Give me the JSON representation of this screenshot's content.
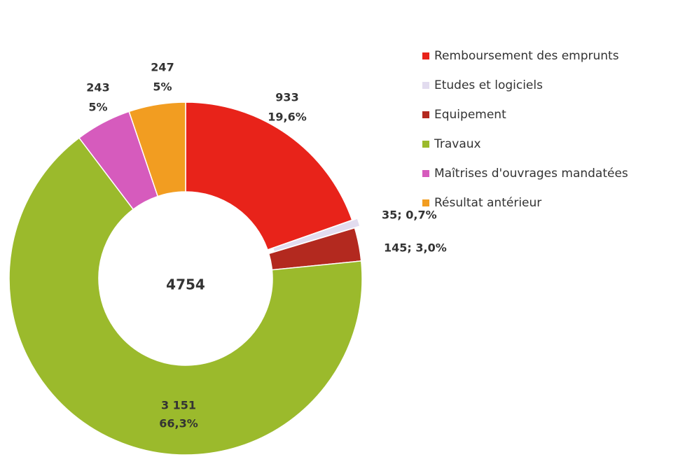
{
  "chart_data": {
    "type": "donut",
    "categories": [
      "Remboursement des emprunts",
      "Etudes et logiciels",
      "Equipement",
      "Travaux",
      "Maîtrises d'ouvrages mandatées",
      "Résultat antérieur"
    ],
    "values": [
      933,
      35,
      145,
      3151,
      243,
      247
    ],
    "value_labels": [
      [
        "933",
        "19,6%"
      ],
      [
        "35; 0,7%"
      ],
      [
        "145; 3,0%"
      ],
      [
        "3 151",
        "66,3%"
      ],
      [
        "243",
        "5%"
      ],
      [
        "247",
        "5%"
      ]
    ],
    "colors": [
      "#e8231a",
      "#e2dcef",
      "#b3291f",
      "#9bba2c",
      "#d65bbd",
      "#f29d21"
    ],
    "total": 4754,
    "legend": "right"
  }
}
